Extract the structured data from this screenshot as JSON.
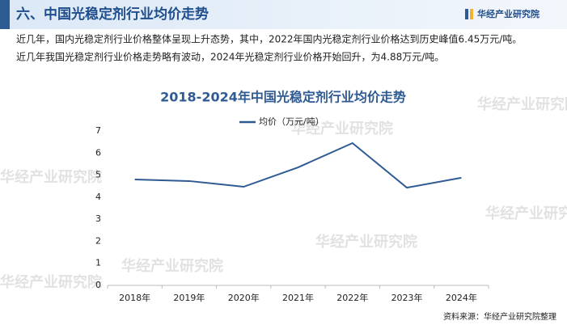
{
  "header": {
    "title": "六、中国光稳定剂行业均价走势",
    "logo": "华经产业研究院"
  },
  "intro": [
    "近几年，国内光稳定剂行业价格整体呈现上升态势，其中，2022年国内光稳定剂行业价格达到历史峰值6.45万元/吨。",
    "近几年我国光稳定剂行业价格走势略有波动，2024年光稳定剂行业价格开始回升，为4.88万元/吨。"
  ],
  "watermark": "华经产业研究院",
  "chart_data": {
    "type": "line",
    "title": "2018-2024年中国光稳定剂行业均价走势",
    "categories": [
      "2018年",
      "2019年",
      "2020年",
      "2021年",
      "2022年",
      "2023年",
      "2024年"
    ],
    "series": [
      {
        "name": "均价（万元/吨）",
        "color": "#2f5b94",
        "values": [
          4.8,
          4.73,
          4.47,
          5.35,
          6.45,
          4.43,
          4.88
        ]
      }
    ],
    "ylim": [
      0,
      7
    ],
    "yticks": [
      0,
      1,
      2,
      3,
      4,
      5,
      6,
      7
    ],
    "grid": false
  },
  "source": "资料来源：华经产业研究院整理"
}
